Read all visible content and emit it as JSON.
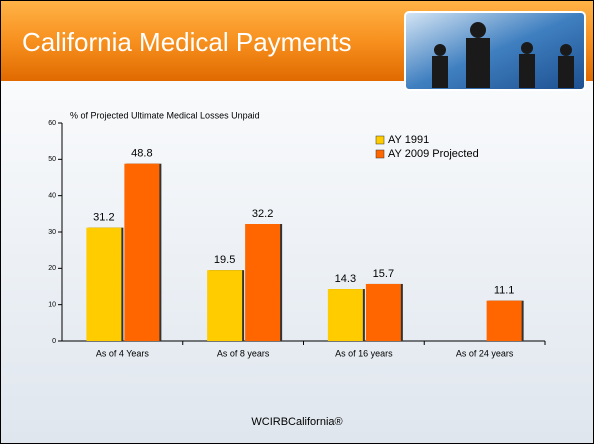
{
  "header": {
    "title": "California Medical Payments"
  },
  "chart_data": {
    "type": "bar",
    "y_label": "% of Projected Ultimate Medical Losses Unpaid",
    "categories": [
      "As of 4 Years",
      "As of 8 years",
      "As of 16 years",
      "As of 24 years"
    ],
    "series": [
      {
        "name": "AY 1991",
        "color": "#FFCC00",
        "values": [
          31.2,
          19.5,
          14.3,
          null
        ]
      },
      {
        "name": "AY 2009 Projected",
        "color": "#FF6600",
        "values": [
          48.8,
          32.2,
          15.7,
          11.1
        ]
      }
    ],
    "ylim": [
      0,
      60
    ],
    "yticks": [
      0,
      10,
      20,
      30,
      40,
      50,
      60
    ]
  },
  "footer": "WCIRBCalifornia®"
}
